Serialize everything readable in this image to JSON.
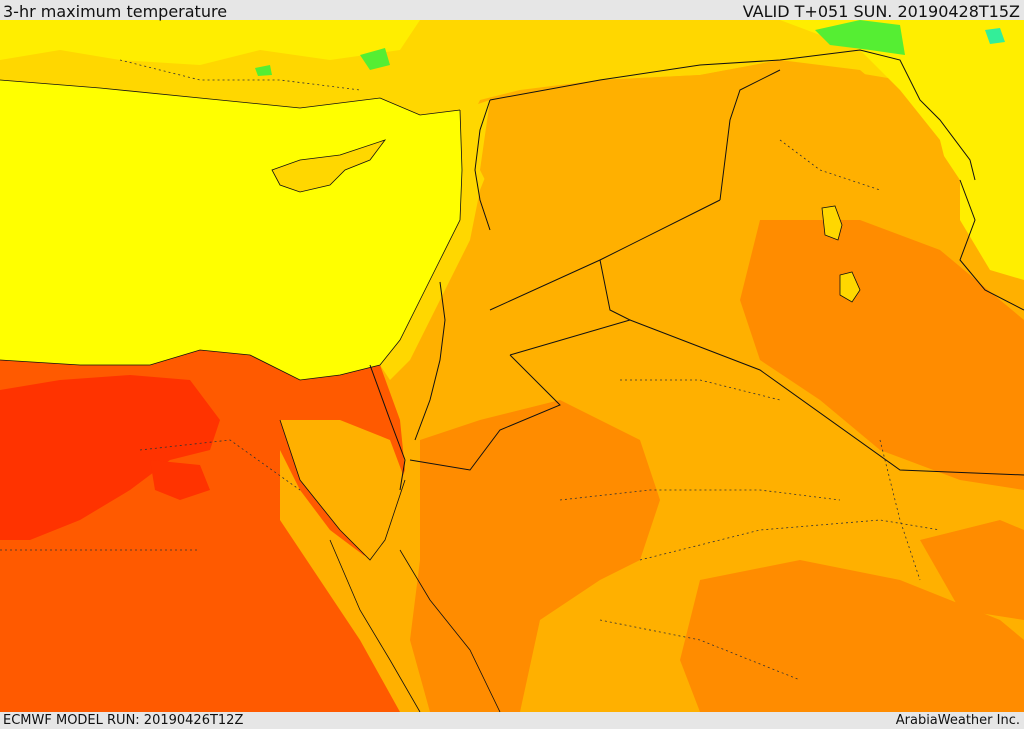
{
  "header": {
    "title": "3-hr maximum temperature",
    "valid_time": "VALID T+051 SUN. 20190428T15Z"
  },
  "footer": {
    "model_run": "ECMWF MODEL RUN: 20190426T12Z",
    "provider": "ArabiaWeather Inc."
  },
  "colors": {
    "sea": "#ffff00",
    "cool_land": "#ffd700",
    "warm": "#ffb000",
    "hot": "#ff8c00",
    "hotter": "#ff5a00",
    "hottest": "#ff3300",
    "mild": "#ffee00",
    "green": "#55ee33",
    "teal": "#33ee99",
    "border": "#111111"
  }
}
